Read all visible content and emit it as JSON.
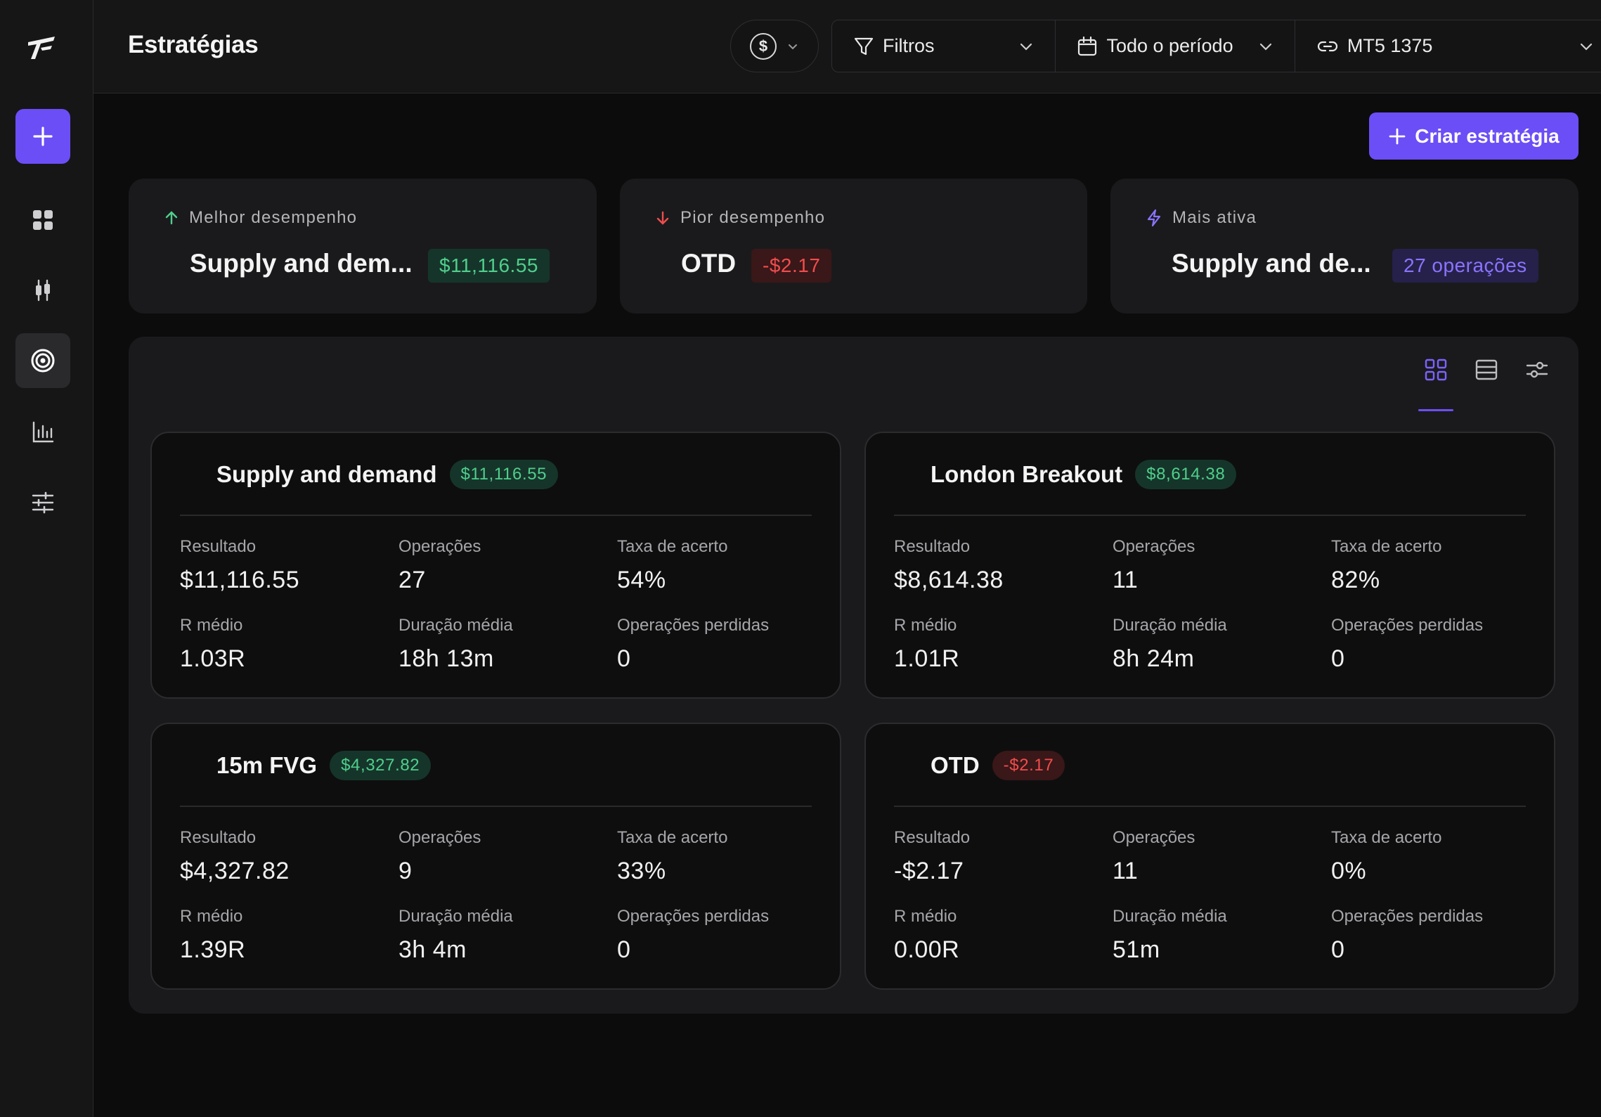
{
  "header": {
    "title": "Estratégias",
    "currency_symbol": "$",
    "filters_label": "Filtros",
    "period_label": "Todo o período",
    "account_label": "MT5 1375"
  },
  "sidebar": {
    "items": [
      "add",
      "dashboard",
      "candles",
      "strategies",
      "reports",
      "settings"
    ],
    "active": "strategies"
  },
  "actions": {
    "create_label": "Criar estratégia"
  },
  "summary": [
    {
      "label": "Melhor desempenho",
      "name": "Supply and dem...",
      "badge": "$11,116.55",
      "tone": "green",
      "icon": "arrow-up-icon"
    },
    {
      "label": "Pior desempenho",
      "name": "OTD",
      "badge": "-$2.17",
      "tone": "red",
      "icon": "arrow-down-icon"
    },
    {
      "label": "Mais ativa",
      "name": "Supply and de...",
      "badge": "27 operações",
      "tone": "purple",
      "icon": "lightning-icon"
    }
  ],
  "stat_labels": {
    "result": "Resultado",
    "operations": "Operações",
    "hit_rate": "Taxa de acerto",
    "avg_r": "R médio",
    "avg_duration": "Duração média",
    "lost_ops": "Operações perdidas"
  },
  "strategies": [
    {
      "name": "Supply and demand",
      "badge": "$11,116.55",
      "tone": "green",
      "result": "$11,116.55",
      "operations": "27",
      "hit_rate": "54%",
      "avg_r": "1.03R",
      "avg_duration": "18h 13m",
      "lost_ops": "0"
    },
    {
      "name": "London Breakout",
      "badge": "$8,614.38",
      "tone": "green",
      "result": "$8,614.38",
      "operations": "11",
      "hit_rate": "82%",
      "avg_r": "1.01R",
      "avg_duration": "8h 24m",
      "lost_ops": "0"
    },
    {
      "name": "15m FVG",
      "badge": "$4,327.82",
      "tone": "green",
      "result": "$4,327.82",
      "operations": "9",
      "hit_rate": "33%",
      "avg_r": "1.39R",
      "avg_duration": "3h 4m",
      "lost_ops": "0"
    },
    {
      "name": "OTD",
      "badge": "-$2.17",
      "tone": "red",
      "result": "-$2.17",
      "operations": "11",
      "hit_rate": "0%",
      "avg_r": "0.00R",
      "avg_duration": "51m",
      "lost_ops": "0"
    }
  ],
  "colors": {
    "accent": "#6c4ef6",
    "positive": "#4fcf8c",
    "negative": "#f04d4d",
    "background": "#0c0c0d",
    "panel": "#1a1a1c"
  }
}
